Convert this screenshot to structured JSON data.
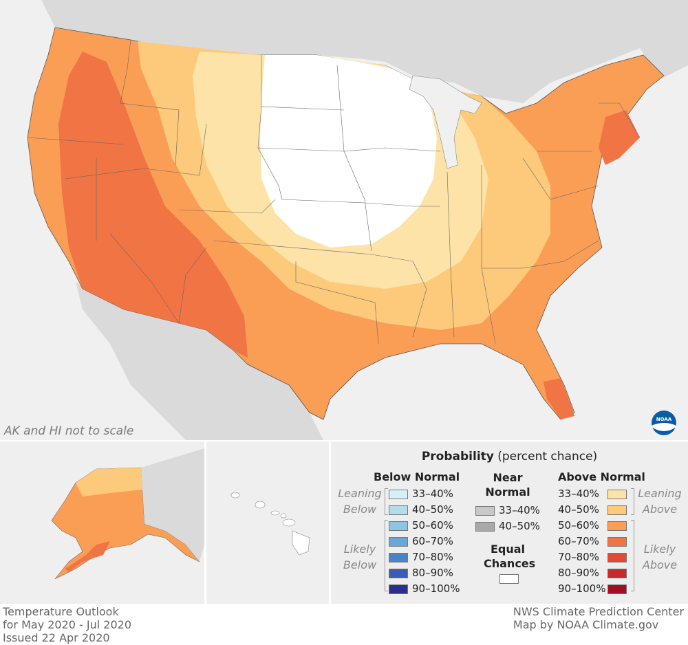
{
  "map": {
    "scale_note": "AK and HI not to scale",
    "colors": {
      "background_land": "#d9d9d9",
      "background_ocean": "#f0f0f0",
      "equal_chances": "#ffffff",
      "above_33_40": "#fde3a7",
      "above_40_50": "#fdc97a",
      "above_50_60": "#fb9e55",
      "above_60_70": "#f17444",
      "above_70_80": "#e24a33",
      "above_80_90": "#c82a2a",
      "above_90_100": "#a30f20",
      "below_33_40": "#d7eff7",
      "below_40_50": "#b5dcec",
      "below_50_60": "#8ec5e3",
      "below_60_70": "#6aa7d6",
      "below_70_80": "#4a84c4",
      "below_80_90": "#3b5cb0",
      "below_90_100": "#2a2f8e",
      "near_33_40": "#c8c8c8",
      "near_40_50": "#a9a9a9"
    }
  },
  "legend": {
    "title_bold": "Probability",
    "title_rest": " (percent chance)",
    "below_head": "Below Normal",
    "near_head_1": "Near",
    "near_head_2": "Normal",
    "above_head": "Above Normal",
    "leaning_below_1": "Leaning",
    "leaning_below_2": "Below",
    "likely_below_1": "Likely",
    "likely_below_2": "Below",
    "leaning_above_1": "Leaning",
    "leaning_above_2": "Above",
    "likely_above_1": "Likely",
    "likely_above_2": "Above",
    "equal_1": "Equal",
    "equal_2": "Chances",
    "below_rows": [
      "33–40%",
      "40–50%",
      "50–60%",
      "60–70%",
      "70–80%",
      "80–90%",
      "90–100%"
    ],
    "near_rows": [
      "33–40%",
      "40–50%"
    ],
    "above_rows": [
      "33–40%",
      "40–50%",
      "50–60%",
      "60–70%",
      "70–80%",
      "80–90%",
      "90–100%"
    ]
  },
  "footer": {
    "left_1": "Temperature Outlook",
    "left_2": "for May 2020 - Jul 2020",
    "left_3": "Issued 22 Apr 2020",
    "right_1": "NWS Climate Prediction Center",
    "right_2": "Map by NOAA Climate.gov"
  },
  "logo": {
    "text": "NOAA",
    "icon": "noaa-logo-icon"
  }
}
